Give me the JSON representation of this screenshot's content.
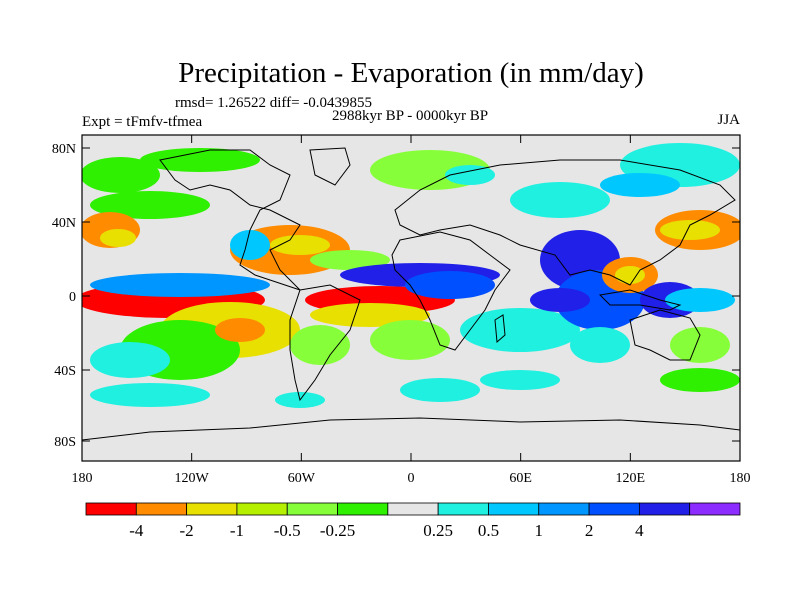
{
  "figure": {
    "title": "Precipitation - Evaporation (in mm/day)",
    "stats": "rmsd= 1.26522 diff= -0.0439855",
    "period": "2988kyr BP - 0000kyr BP",
    "experiment": "Expt = tFmfv-tfmea",
    "season": "JJA"
  },
  "axes": {
    "lat_labels": [
      "80N",
      "40N",
      "0",
      "40S",
      "80S"
    ],
    "lon_labels": [
      "180",
      "120W",
      "60W",
      "0",
      "60E",
      "120E",
      "180"
    ]
  },
  "colorbar": {
    "colors": [
      "#ff0000",
      "#ff8c00",
      "#e8e000",
      "#b4f000",
      "#86ff3a",
      "#2ef000",
      "#e6e6e6",
      "#20f0e0",
      "#00c8ff",
      "#0096ff",
      "#0050ff",
      "#2020e8",
      "#8c2cff"
    ],
    "labels": [
      "-4",
      "-2",
      "-1",
      "-0.5",
      "-0.25",
      "0.25",
      "0.5",
      "1",
      "2",
      "4"
    ]
  },
  "map_colors": {
    "neutral": "#e6e6e6",
    "coast": "#000000"
  }
}
